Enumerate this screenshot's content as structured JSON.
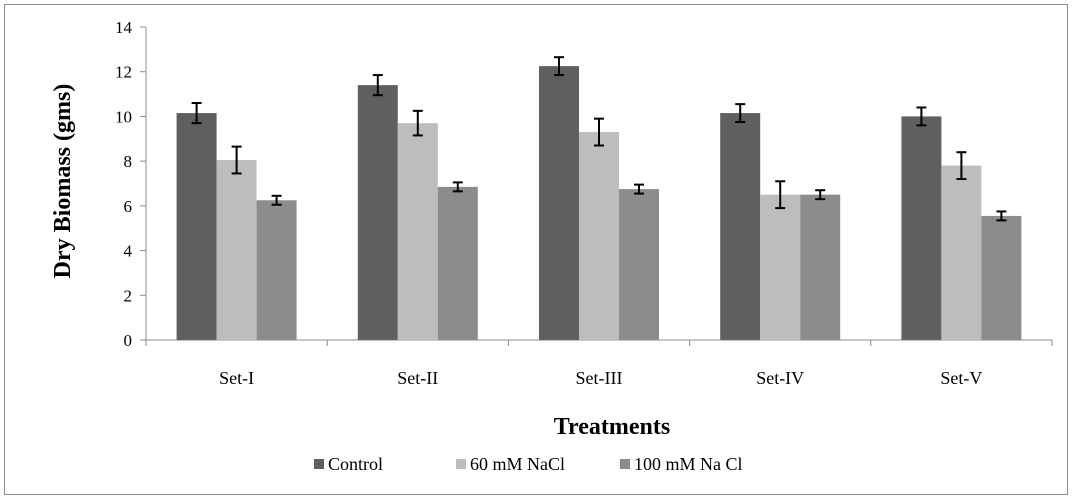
{
  "chart_data": {
    "type": "bar",
    "title": "",
    "xlabel": "Treatments",
    "ylabel": "Dry Biomass (gms)",
    "ylim": [
      0,
      14
    ],
    "yticks": [
      "0",
      "2",
      "4",
      "6",
      "8",
      "10",
      "12",
      "14"
    ],
    "categories": [
      "Set-I",
      "Set-II",
      "Set-III",
      "Set-IV",
      "Set-V"
    ],
    "grid": false,
    "legend_position": "bottom",
    "series": [
      {
        "name": "Control",
        "color": "#5f5f5f",
        "values": [
          10.15,
          11.4,
          12.25,
          10.15,
          10.0
        ],
        "errors": [
          0.45,
          0.45,
          0.4,
          0.4,
          0.4
        ]
      },
      {
        "name": "60 mM NaCl",
        "color": "#bdbdbd",
        "values": [
          8.05,
          9.7,
          9.3,
          6.5,
          7.8
        ],
        "errors": [
          0.6,
          0.55,
          0.6,
          0.6,
          0.6
        ]
      },
      {
        "name": "100 mM Na Cl",
        "color": "#8c8c8c",
        "values": [
          6.25,
          6.85,
          6.75,
          6.5,
          5.55
        ],
        "errors": [
          0.2,
          0.2,
          0.2,
          0.2,
          0.2
        ]
      }
    ]
  }
}
